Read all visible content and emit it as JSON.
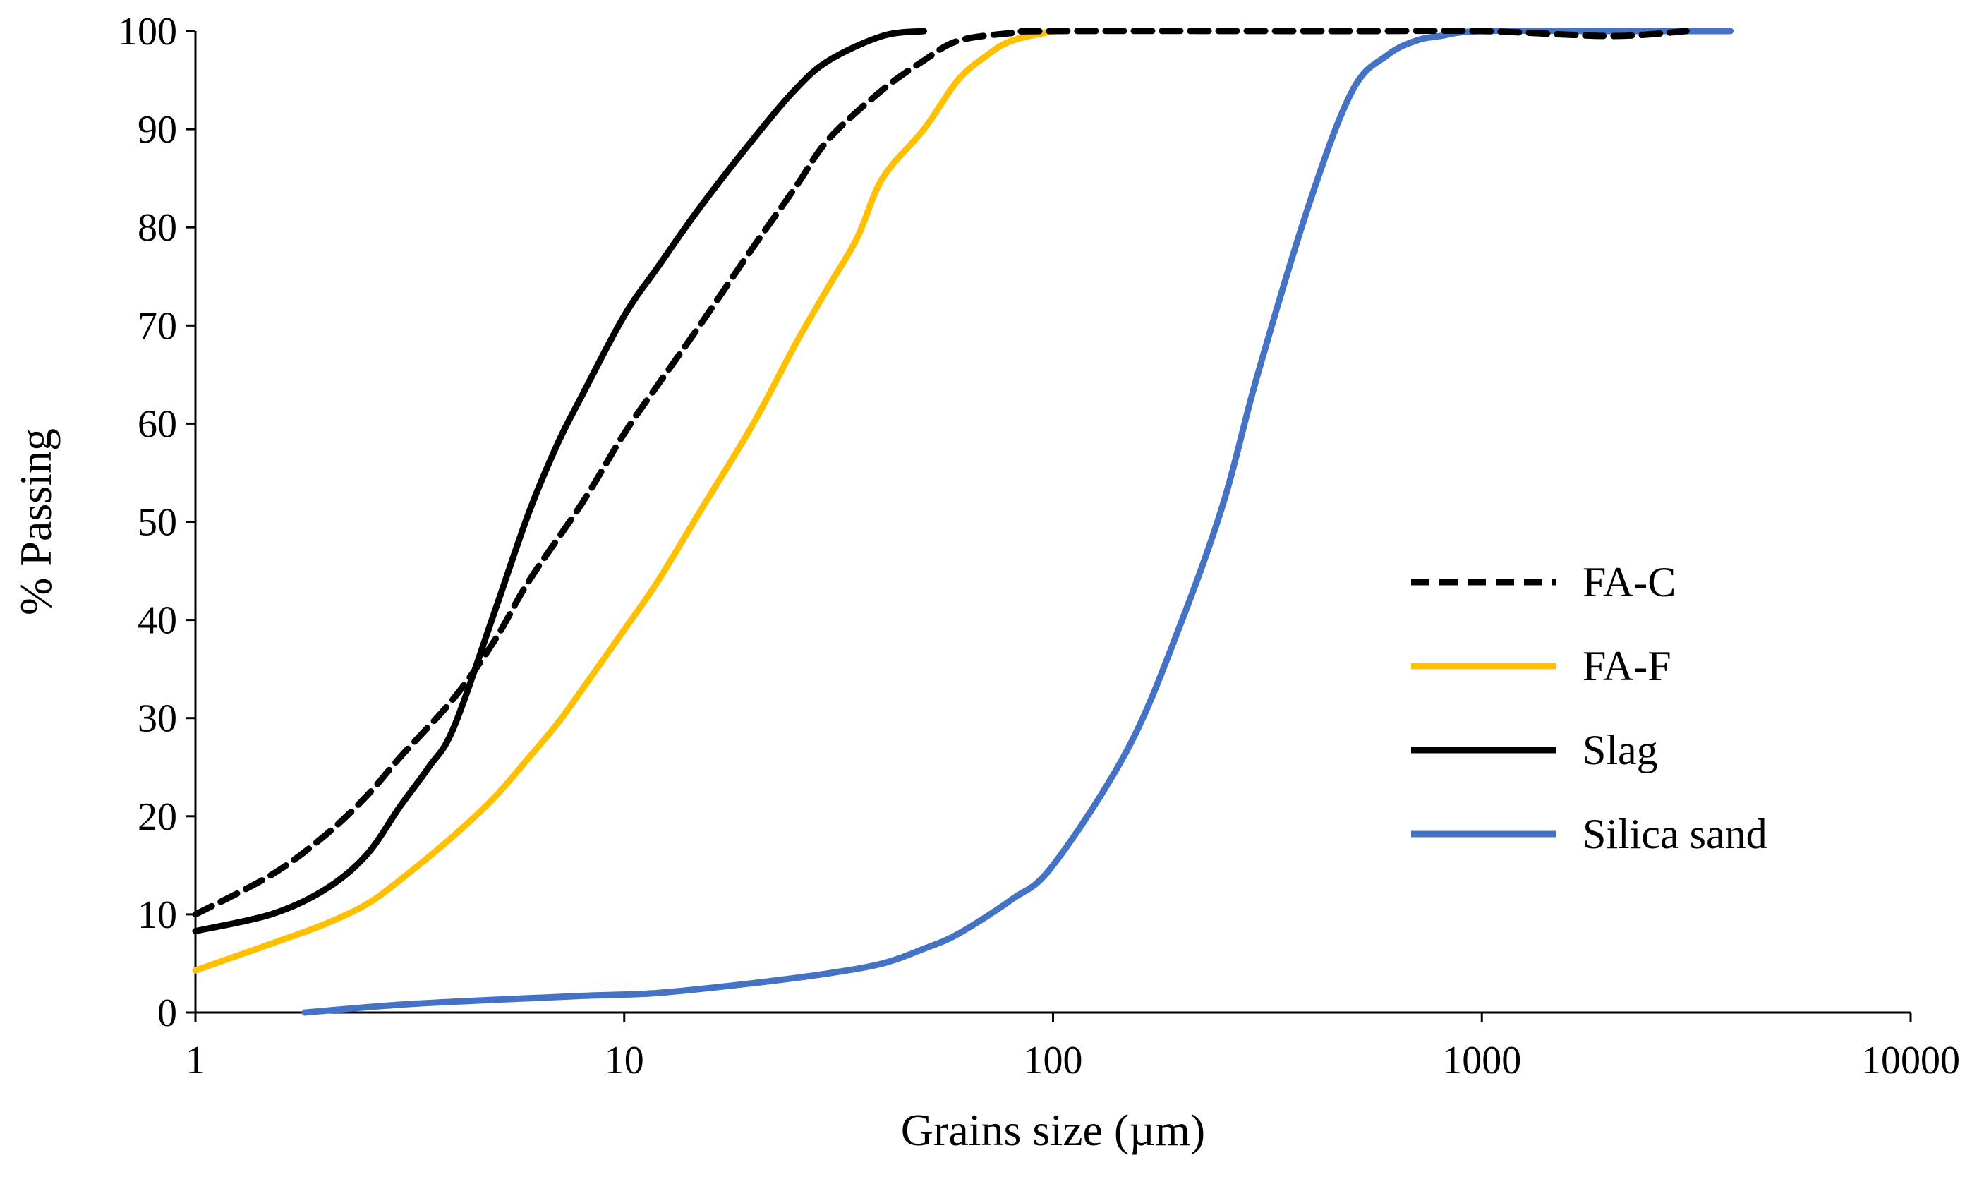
{
  "chart_data": {
    "type": "line",
    "title": "",
    "xlabel": "Grains size (µm)",
    "ylabel": "% Passing",
    "xscale": "log",
    "xlim": [
      1,
      10000
    ],
    "ylim": [
      0,
      100
    ],
    "x_ticks": [
      {
        "value": 1,
        "label": "1"
      },
      {
        "value": 10,
        "label": "10"
      },
      {
        "value": 100,
        "label": "100"
      },
      {
        "value": 1000,
        "label": "1000"
      },
      {
        "value": 10000,
        "label": "10000"
      }
    ],
    "y_ticks": [
      {
        "value": 0,
        "label": "0"
      },
      {
        "value": 10,
        "label": "10"
      },
      {
        "value": 20,
        "label": "20"
      },
      {
        "value": 30,
        "label": "30"
      },
      {
        "value": 40,
        "label": "40"
      },
      {
        "value": 50,
        "label": "50"
      },
      {
        "value": 60,
        "label": "60"
      },
      {
        "value": 70,
        "label": "70"
      },
      {
        "value": 80,
        "label": "80"
      },
      {
        "value": 90,
        "label": "90"
      },
      {
        "value": 100,
        "label": "100"
      }
    ],
    "grid": false,
    "legend_position": "right-middle",
    "series": [
      {
        "name": "FA-C",
        "color": "#000000",
        "dash": "dashed",
        "x": [
          1,
          1.5,
          2,
          2.5,
          3,
          4,
          5,
          6,
          8,
          10,
          12,
          15,
          20,
          25,
          30,
          40,
          50,
          60,
          80,
          100,
          500,
          1000,
          2000,
          3000
        ],
        "y": [
          10,
          14,
          18,
          22,
          26,
          32,
          38,
          44,
          52,
          59,
          64,
          70,
          78,
          84,
          89,
          94,
          97,
          99,
          99.8,
          100,
          100,
          100,
          99.5,
          100
        ]
      },
      {
        "name": "FA-F",
        "color": "#FFC000",
        "dash": "solid",
        "x": [
          1,
          1.5,
          2,
          2.5,
          3,
          4,
          5,
          6,
          7,
          8,
          10,
          12,
          15,
          20,
          25,
          30,
          35,
          40,
          50,
          60,
          70,
          80,
          100
        ],
        "y": [
          4.3,
          7,
          9,
          11,
          13.5,
          18,
          22,
          26,
          29.5,
          33,
          39,
          44,
          51,
          60,
          68,
          74,
          79,
          85,
          90,
          95,
          97.5,
          99,
          100
        ]
      },
      {
        "name": "Slag",
        "color": "#000000",
        "dash": "solid",
        "x": [
          1,
          1.5,
          2,
          2.5,
          3,
          3.5,
          4,
          5,
          6,
          7,
          8,
          10,
          12,
          15,
          20,
          25,
          30,
          40,
          50
        ],
        "y": [
          8.3,
          10,
          12.5,
          16,
          21,
          25,
          29,
          41,
          51,
          58,
          63,
          71,
          76,
          82,
          89,
          94,
          97,
          99.5,
          100
        ]
      },
      {
        "name": "Silica sand",
        "color": "#4472C4",
        "dash": "solid",
        "x": [
          1.8,
          3,
          5,
          8,
          12,
          20,
          30,
          40,
          50,
          60,
          80,
          100,
          150,
          200,
          250,
          300,
          400,
          500,
          600,
          700,
          800,
          1000,
          2000,
          3800
        ],
        "y": [
          0,
          0.8,
          1.3,
          1.7,
          2,
          3,
          4,
          5,
          6.5,
          8,
          11.5,
          15,
          27,
          40,
          52,
          65,
          83,
          94,
          97.5,
          99,
          99.5,
          100,
          100,
          100
        ]
      }
    ]
  }
}
